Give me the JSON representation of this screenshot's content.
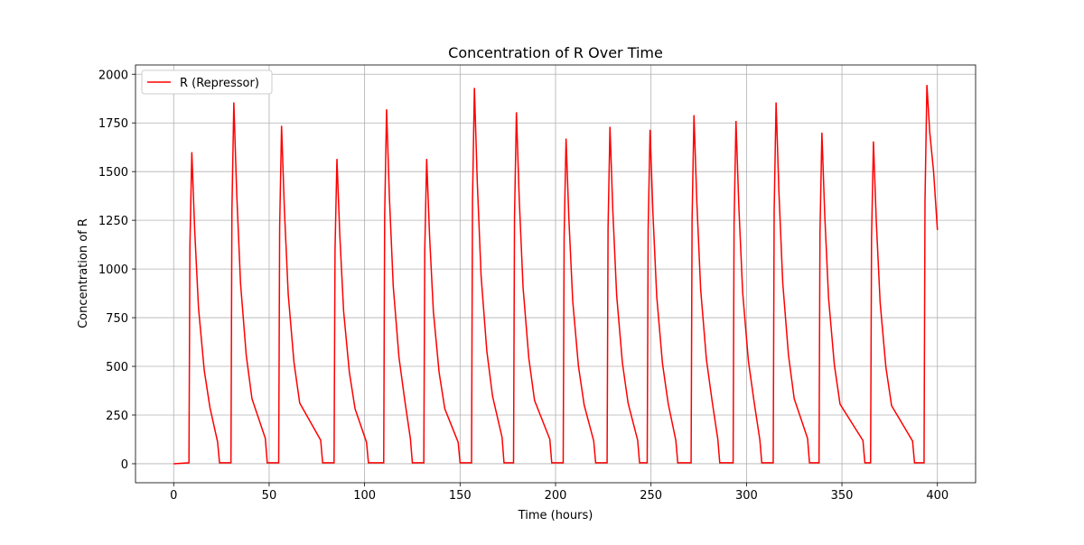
{
  "chart_data": {
    "type": "line",
    "title": "Concentration of R Over Time",
    "xlabel": "Time (hours)",
    "ylabel": "Concentration of R",
    "x": [
      0,
      8,
      8.5,
      9.5,
      11,
      13,
      16,
      19,
      23,
      24,
      30,
      30.5,
      31.5,
      33,
      35,
      38,
      41,
      48,
      49,
      55,
      55.5,
      56.5,
      58,
      60,
      63,
      66,
      77,
      78,
      84,
      84.5,
      85.5,
      87,
      89,
      92,
      95,
      101,
      102,
      110,
      110.5,
      111.5,
      113,
      115,
      118,
      121,
      124,
      125,
      131,
      131.5,
      132.5,
      134,
      136,
      139,
      142,
      149,
      150,
      156,
      156.5,
      157.5,
      159,
      161,
      164,
      167,
      172,
      173,
      178,
      178.5,
      179.5,
      181,
      183,
      186,
      189,
      197,
      198,
      204,
      204.5,
      205.5,
      207,
      209,
      212,
      215,
      220,
      221,
      227,
      227.5,
      228.5,
      230,
      232,
      235,
      238,
      243,
      244,
      248,
      248.5,
      249.5,
      251,
      253,
      256,
      259,
      263,
      264,
      271,
      271.5,
      272.5,
      274,
      276,
      279,
      282,
      285,
      286,
      293,
      293.5,
      294.5,
      296,
      298,
      301,
      304,
      307,
      308,
      314,
      314.5,
      315.5,
      317,
      319,
      322,
      325,
      332,
      333,
      338,
      338.5,
      339.5,
      341,
      343,
      346,
      349,
      361,
      362,
      365,
      365.5,
      366.5,
      368,
      370,
      373,
      376,
      387,
      388,
      393,
      393.5,
      394.5,
      396,
      398,
      400
    ],
    "series": [
      {
        "name": "R (Repressor)",
        "color": "#ff0000",
        "values": [
          0,
          5,
          1120,
          1600,
          1200,
          800,
          480,
          288,
          112,
          5,
          5,
          1299,
          1855,
          1391,
          928,
          557,
          334,
          130,
          5,
          5,
          1215,
          1735,
          1301,
          868,
          521,
          312,
          121,
          5,
          5,
          1096,
          1565,
          1174,
          783,
          470,
          282,
          110,
          5,
          5,
          1274,
          1820,
          1365,
          910,
          546,
          328,
          127,
          5,
          5,
          1096,
          1565,
          1174,
          783,
          470,
          282,
          110,
          5,
          5,
          1351,
          1930,
          1448,
          965,
          579,
          347,
          135,
          5,
          5,
          1264,
          1805,
          1354,
          903,
          542,
          325,
          126,
          5,
          5,
          1169,
          1670,
          1253,
          835,
          501,
          301,
          117,
          5,
          5,
          1211,
          1730,
          1298,
          865,
          519,
          311,
          121,
          5,
          5,
          1201,
          1715,
          1286,
          858,
          515,
          309,
          120,
          5,
          5,
          1253,
          1790,
          1343,
          895,
          537,
          322,
          125,
          5,
          5,
          1232,
          1760,
          1320,
          880,
          528,
          317,
          123,
          5,
          5,
          1299,
          1855,
          1391,
          928,
          557,
          334,
          130,
          5,
          5,
          1190,
          1700,
          1275,
          850,
          510,
          306,
          119,
          5,
          5,
          1159,
          1655,
          1241,
          828,
          497,
          298,
          116,
          5,
          5,
          1350,
          1945,
          1700,
          1500,
          1200
        ]
      }
    ],
    "xlim": [
      -20,
      420
    ],
    "xticks": [
      0,
      50,
      100,
      150,
      200,
      250,
      300,
      350,
      400
    ],
    "ylim": [
      -97.5,
      2047.5
    ],
    "yticks": [
      0,
      250,
      500,
      750,
      1000,
      1250,
      1500,
      1750,
      2000
    ],
    "grid": true,
    "legend": "upper left"
  }
}
